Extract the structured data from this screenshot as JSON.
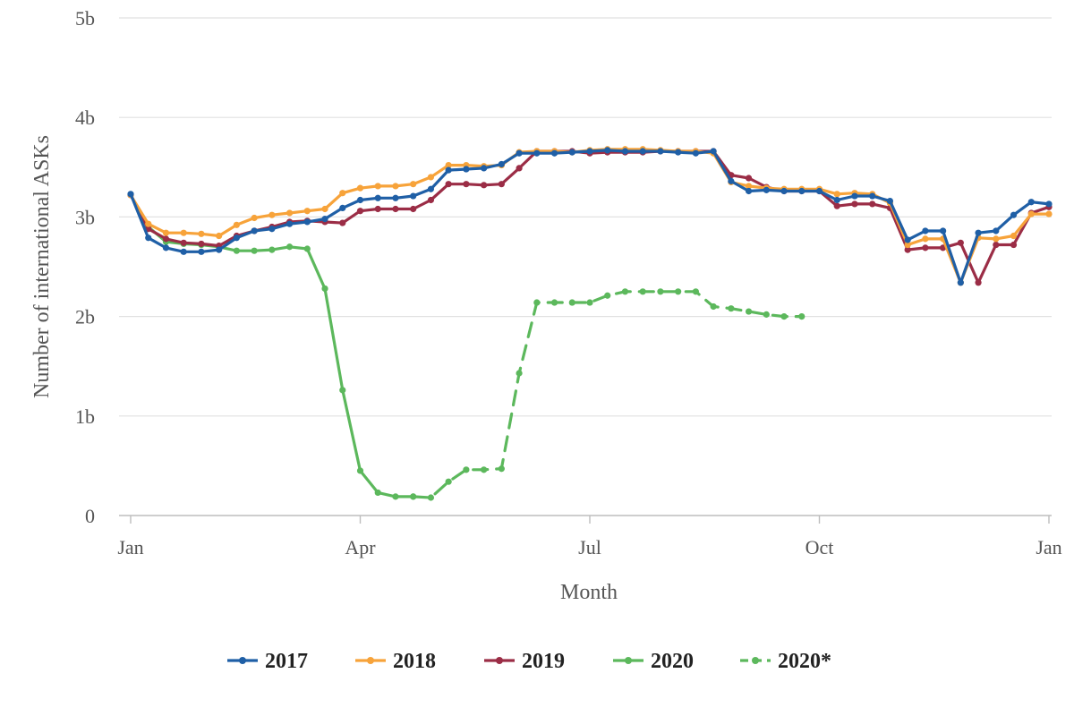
{
  "chart_data": {
    "type": "line",
    "xlabel": "Month",
    "ylabel": "Number of international ASKs",
    "x_ticks": [
      "Jan",
      "Apr",
      "Jul",
      "Oct",
      "Jan"
    ],
    "y_ticks": [
      "0",
      "1b",
      "2b",
      "3b",
      "4b",
      "5b"
    ],
    "ylim": [
      0,
      5
    ],
    "xlim": [
      0,
      52
    ],
    "grid": "horizontal",
    "legend_position": "bottom",
    "colors": {
      "2017": "#1f5fa6",
      "2018": "#f7a33a",
      "2019": "#9b2d46",
      "2020": "#5cb85c",
      "2020*": "#5cb85c"
    },
    "series": [
      {
        "name": "2017",
        "style": "solid",
        "x": [
          0,
          1,
          2,
          3,
          4,
          5,
          6,
          7,
          8,
          9,
          10,
          11,
          12,
          13,
          14,
          15,
          16,
          17,
          18,
          19,
          20,
          21,
          22,
          23,
          24,
          25,
          26,
          27,
          28,
          29,
          30,
          31,
          32,
          33,
          34,
          35,
          36,
          37,
          38,
          39,
          40,
          41,
          42,
          43,
          44,
          45,
          46,
          47,
          48,
          49,
          50,
          51,
          52
        ],
        "values": [
          3.23,
          2.79,
          2.69,
          2.65,
          2.65,
          2.67,
          2.79,
          2.86,
          2.88,
          2.93,
          2.95,
          2.98,
          3.09,
          3.17,
          3.19,
          3.19,
          3.21,
          3.28,
          3.47,
          3.48,
          3.49,
          3.53,
          3.64,
          3.64,
          3.64,
          3.65,
          3.66,
          3.67,
          3.66,
          3.66,
          3.66,
          3.65,
          3.64,
          3.66,
          3.36,
          3.26,
          3.27,
          3.26,
          3.26,
          3.26,
          3.17,
          3.21,
          3.21,
          3.16,
          2.77,
          2.86,
          2.86,
          2.34,
          2.84,
          2.86,
          3.02,
          3.15,
          3.13
        ]
      },
      {
        "name": "2018",
        "style": "solid",
        "x": [
          0,
          1,
          2,
          3,
          4,
          5,
          6,
          7,
          8,
          9,
          10,
          11,
          12,
          13,
          14,
          15,
          16,
          17,
          18,
          19,
          20,
          21,
          22,
          23,
          24,
          25,
          26,
          27,
          28,
          29,
          30,
          31,
          32,
          33,
          34,
          35,
          36,
          37,
          38,
          39,
          40,
          41,
          42,
          43,
          44,
          45,
          46,
          47,
          48,
          49,
          50,
          51,
          52
        ],
        "values": [
          3.22,
          2.93,
          2.84,
          2.84,
          2.83,
          2.81,
          2.92,
          2.99,
          3.02,
          3.04,
          3.06,
          3.08,
          3.24,
          3.29,
          3.31,
          3.31,
          3.33,
          3.4,
          3.52,
          3.52,
          3.51,
          3.52,
          3.65,
          3.66,
          3.66,
          3.65,
          3.67,
          3.68,
          3.68,
          3.68,
          3.67,
          3.66,
          3.66,
          3.64,
          3.35,
          3.31,
          3.29,
          3.28,
          3.28,
          3.28,
          3.23,
          3.24,
          3.23,
          3.14,
          2.72,
          2.78,
          2.78,
          2.34,
          2.79,
          2.78,
          2.81,
          3.03,
          3.03
        ]
      },
      {
        "name": "2019",
        "style": "solid",
        "x": [
          0,
          1,
          2,
          3,
          4,
          5,
          6,
          7,
          8,
          9,
          10,
          11,
          12,
          13,
          14,
          15,
          16,
          17,
          18,
          19,
          20,
          21,
          22,
          23,
          24,
          25,
          26,
          27,
          28,
          29,
          30,
          31,
          32,
          33,
          34,
          35,
          36,
          37,
          38,
          39,
          40,
          41,
          42,
          43,
          44,
          45,
          46,
          47,
          48,
          49,
          50,
          51,
          52
        ],
        "values": [
          3.22,
          2.88,
          2.78,
          2.74,
          2.73,
          2.71,
          2.81,
          2.86,
          2.9,
          2.95,
          2.96,
          2.95,
          2.94,
          3.06,
          3.08,
          3.08,
          3.08,
          3.17,
          3.33,
          3.33,
          3.32,
          3.33,
          3.49,
          3.66,
          3.66,
          3.66,
          3.64,
          3.65,
          3.65,
          3.65,
          3.66,
          3.66,
          3.66,
          3.66,
          3.42,
          3.39,
          3.3,
          3.26,
          3.26,
          3.26,
          3.11,
          3.13,
          3.13,
          3.09,
          2.67,
          2.69,
          2.69,
          2.74,
          2.34,
          2.72,
          2.72,
          3.04,
          3.1
        ]
      },
      {
        "name": "2020",
        "style": "solid",
        "x": [
          1,
          2,
          3,
          4,
          5,
          6,
          7,
          8,
          9,
          10,
          11,
          12,
          13,
          14,
          15,
          16
        ],
        "values": [
          2.9,
          2.75,
          2.73,
          2.72,
          2.7,
          2.66,
          2.66,
          2.67,
          2.7,
          2.68,
          2.28,
          1.26,
          0.45,
          0.23,
          0.19,
          0.19
        ]
      },
      {
        "name": "2020*",
        "style": "dashed",
        "x": [
          16,
          17,
          18,
          19,
          20,
          21,
          22,
          23,
          24,
          25,
          26,
          27,
          28,
          29,
          30,
          31,
          32,
          33,
          34,
          35,
          36,
          37,
          38
        ],
        "values": [
          0.19,
          0.18,
          0.34,
          0.46,
          0.46,
          0.47,
          1.43,
          2.14,
          2.14,
          2.14,
          2.14,
          2.21,
          2.25,
          2.25,
          2.25,
          2.25,
          2.25,
          2.1,
          2.08,
          2.05,
          2.02,
          2.0,
          2.0
        ]
      }
    ]
  }
}
